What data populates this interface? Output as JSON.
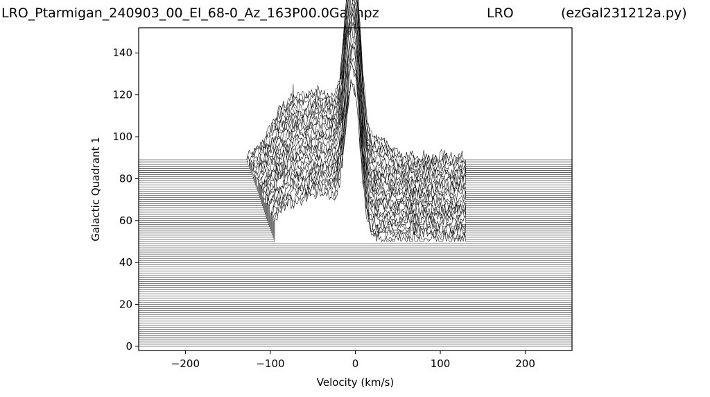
{
  "title": {
    "left": "LRO_Ptarmigan_240903_00_El_68-0_Az_163P00.0Gal.npz",
    "center": "LRO",
    "right": "(ezGal231212a.py)"
  },
  "chart_data": {
    "type": "line",
    "style": "waterfall",
    "xlabel": "Velocity (km/s)",
    "ylabel": "Galactic Quadrant 1",
    "xlim": [
      -255,
      255
    ],
    "ylim": [
      -2,
      152
    ],
    "xticks": [
      -200,
      -100,
      0,
      100,
      200
    ],
    "yticks": [
      0,
      20,
      40,
      60,
      80,
      100,
      120,
      140
    ],
    "xtick_labels": [
      "−200",
      "−100",
      "0",
      "100",
      "200"
    ],
    "ytick_labels": [
      "0",
      "20",
      "40",
      "60",
      "80",
      "100",
      "120",
      "140"
    ],
    "grid": false,
    "line_color": "#000000",
    "flat_lines": {
      "from": 0,
      "to": 89,
      "step": 1,
      "x_range": [
        -255,
        255
      ]
    },
    "spectra": {
      "from": 50,
      "to": 89,
      "step": 1,
      "x_range_start": [
        -95,
        -128
      ],
      "x_range_end": [
        130,
        130
      ],
      "peak_height": [
        55,
        95
      ],
      "peak_center": 0
    },
    "annotations": [
      {
        "x": -73,
        "y": 125,
        "note": "narrow spike"
      }
    ]
  }
}
